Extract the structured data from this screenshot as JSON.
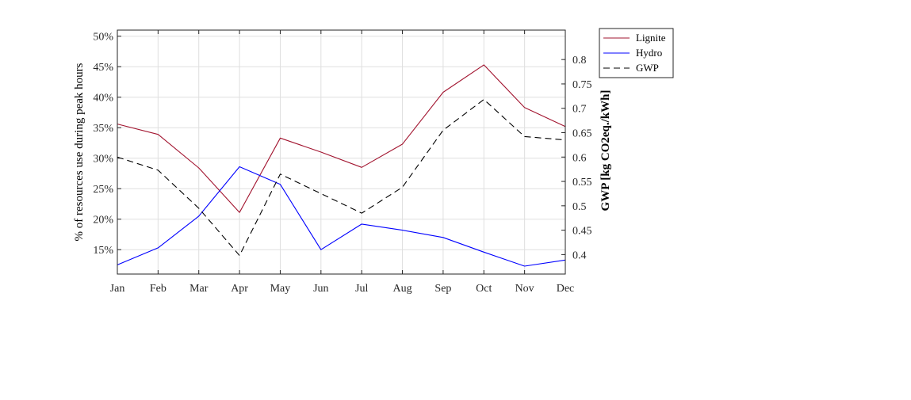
{
  "chart_data": {
    "type": "line",
    "categories": [
      "Jan",
      "Feb",
      "Mar",
      "Apr",
      "May",
      "Jun",
      "Jul",
      "Aug",
      "Sep",
      "Oct",
      "Nov",
      "Dec"
    ],
    "left_axis": {
      "label": "% of resources use during peak hours",
      "ylim": [
        11,
        51
      ],
      "ticks": [
        15,
        20,
        25,
        30,
        35,
        40,
        45,
        50
      ],
      "tick_labels": [
        "15%",
        "20%",
        "25%",
        "30%",
        "35%",
        "40%",
        "45%",
        "50%"
      ]
    },
    "right_axis": {
      "label": "GWP [kg CO2eq./kWh]",
      "ylim": [
        0.36,
        0.8604
      ],
      "ticks": [
        0.4,
        0.45,
        0.5,
        0.55,
        0.6,
        0.65,
        0.7,
        0.75,
        0.8
      ],
      "tick_labels": [
        "0.4",
        "0.45",
        "0.5",
        "0.55",
        "0.6",
        "0.65",
        "0.7",
        "0.75",
        "0.8"
      ]
    },
    "series": [
      {
        "name": "Lignite",
        "axis": "left",
        "color": "#a2142f",
        "style": "solid",
        "values": [
          35.6,
          33.9,
          28.4,
          21.1,
          33.3,
          31.0,
          28.5,
          32.3,
          40.8,
          45.3,
          38.3,
          35.2
        ]
      },
      {
        "name": "Hydro",
        "axis": "left",
        "color": "#0000ff",
        "style": "solid",
        "values": [
          12.5,
          15.3,
          20.5,
          28.6,
          25.7,
          15.0,
          19.2,
          18.2,
          17.0,
          14.6,
          12.3,
          13.3
        ]
      },
      {
        "name": "GWP",
        "axis": "right",
        "color": "#000000",
        "style": "dashed",
        "values": [
          0.6,
          0.573,
          0.495,
          0.398,
          0.565,
          0.525,
          0.485,
          0.538,
          0.655,
          0.718,
          0.642,
          0.635
        ]
      }
    ],
    "grid": true,
    "legend_position": "outside-top-right"
  }
}
